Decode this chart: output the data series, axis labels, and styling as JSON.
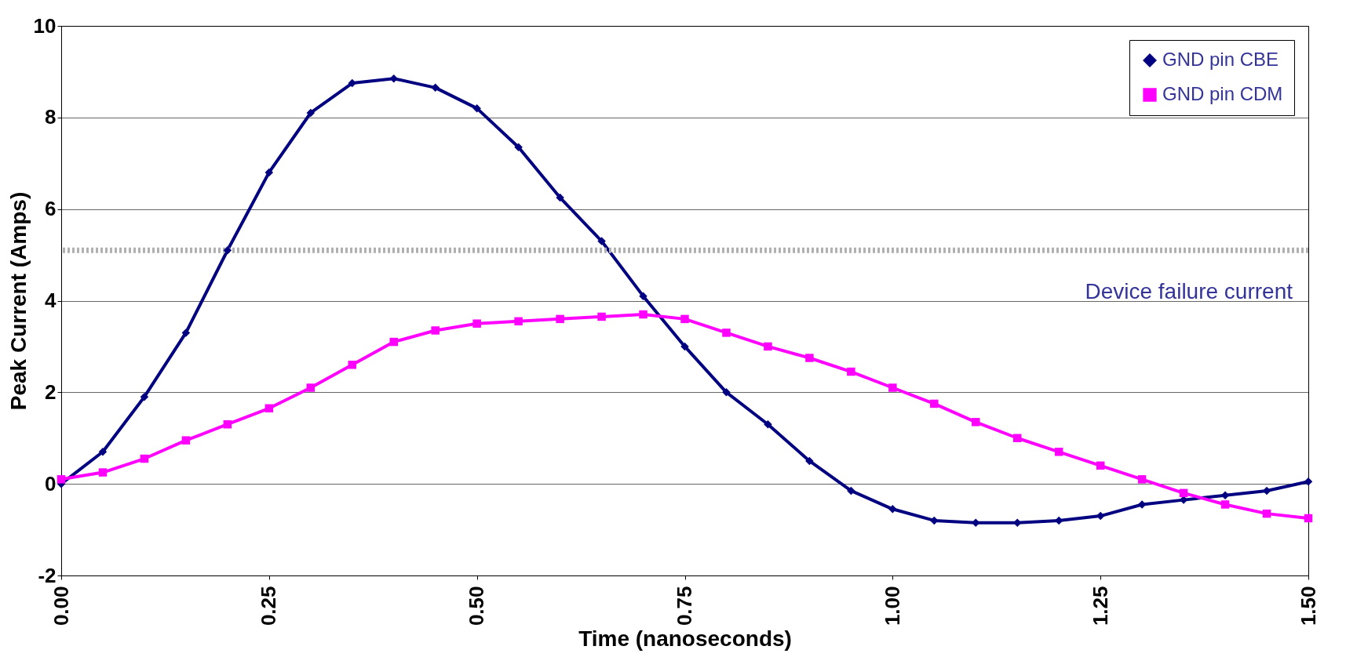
{
  "chart_data": {
    "type": "line",
    "xlabel": "Time (nanoseconds)",
    "ylabel": "Peak Current (Amps)",
    "x": [
      0,
      0.05,
      0.1,
      0.15,
      0.2,
      0.25,
      0.3,
      0.35,
      0.4,
      0.45,
      0.5,
      0.55,
      0.6,
      0.65,
      0.7,
      0.75,
      0.8,
      0.85,
      0.9,
      0.95,
      1.0,
      1.05,
      1.1,
      1.15,
      1.2,
      1.25,
      1.3,
      1.35,
      1.4,
      1.45,
      1.5
    ],
    "series": [
      {
        "name": "GND pin CBE",
        "color": "#000080",
        "marker": "diamond",
        "values": [
          0.0,
          0.7,
          1.9,
          3.3,
          5.1,
          6.8,
          8.1,
          8.75,
          8.85,
          8.65,
          8.2,
          7.35,
          6.25,
          5.3,
          4.1,
          3.0,
          2.0,
          1.3,
          0.5,
          -0.15,
          -0.55,
          -0.8,
          -0.85,
          -0.85,
          -0.8,
          -0.7,
          -0.45,
          -0.35,
          -0.25,
          -0.15,
          0.05
        ]
      },
      {
        "name": "GND pin CDM",
        "color": "#ff00ff",
        "marker": "square",
        "values": [
          0.1,
          0.25,
          0.55,
          0.95,
          1.3,
          1.65,
          2.1,
          2.6,
          3.1,
          3.35,
          3.5,
          3.55,
          3.6,
          3.65,
          3.7,
          3.6,
          3.3,
          3.0,
          2.75,
          2.45,
          2.1,
          1.75,
          1.35,
          1.0,
          0.7,
          0.4,
          0.1,
          -0.2,
          -0.45,
          -0.65,
          -0.75
        ]
      }
    ],
    "ref_lines": [
      {
        "axis": "y",
        "value": 5.1,
        "label": "Device failure current",
        "color": "#b0b0b0",
        "line_style": "dotted"
      }
    ],
    "xlim": [
      0,
      1.5
    ],
    "xticks": [
      {
        "value": 0,
        "label": "0.00"
      },
      {
        "value": 0.25,
        "label": "0.25"
      },
      {
        "value": 0.5,
        "label": "0.50"
      },
      {
        "value": 0.75,
        "label": "0.75"
      },
      {
        "value": 1.0,
        "label": "1.00"
      },
      {
        "value": 1.25,
        "label": "1.25"
      },
      {
        "value": 1.5,
        "label": "1.50"
      }
    ],
    "ylim": [
      -2,
      10
    ],
    "yticks": [
      -2,
      0,
      2,
      4,
      6,
      8,
      10
    ],
    "grid": "y",
    "legend": "top right",
    "line_style": "solid"
  }
}
